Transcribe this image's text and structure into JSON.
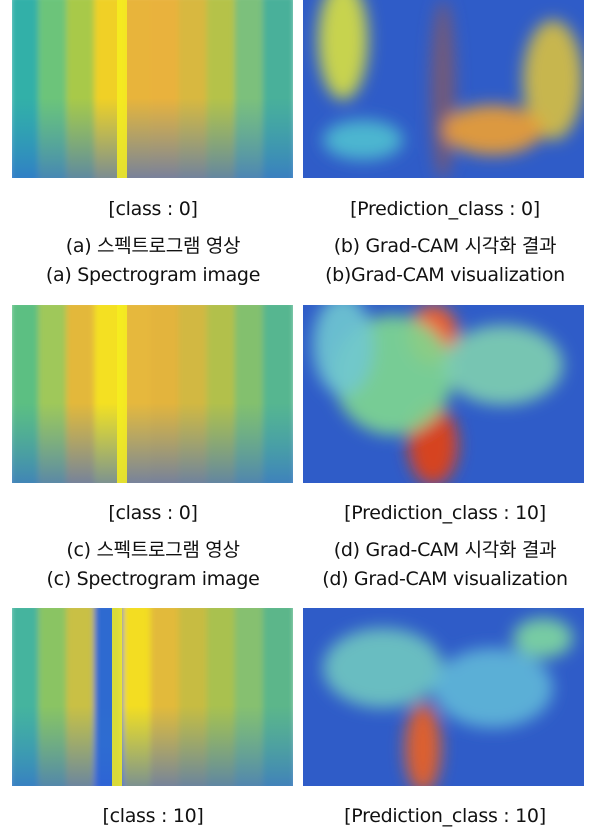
{
  "rows": [
    {
      "left": {
        "label": "[class : 0]",
        "title": "(a) 스펙트로그램 영상",
        "subtitle": "(a) Spectrogram image"
      },
      "right": {
        "label": "[Prediction_class : 0]",
        "title": "(b) Grad-CAM 시각화 결과",
        "subtitle": "(b)Grad-CAM visualization"
      }
    },
    {
      "left": {
        "label": "[class : 0]",
        "title": "(c) 스펙트로그램 영상",
        "subtitle": "(c) Spectrogram image"
      },
      "right": {
        "label": "[Prediction_class : 10]",
        "title": "(d) Grad-CAM 시각화 결과",
        "subtitle": "(d) Grad-CAM visualization"
      }
    },
    {
      "left": {
        "label": "[class : 10]"
      },
      "right": {
        "label": "[Prediction_class : 10]"
      }
    }
  ]
}
